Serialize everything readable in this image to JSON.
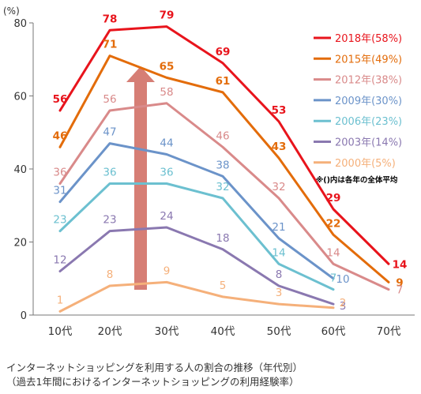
{
  "chart_data": {
    "type": "line",
    "ylabel": "(%)",
    "ylim": [
      0,
      80
    ],
    "yticks": [
      "0",
      "20",
      "40",
      "60",
      "80"
    ],
    "categories": [
      "10代",
      "20代",
      "30代",
      "40代",
      "50代",
      "60代",
      "70代"
    ],
    "legend_position": "right",
    "note": "※()内は各年の全体平均",
    "series": [
      {
        "name": "2018年(58%)",
        "color": "#e8141c",
        "values": [
          56,
          78,
          79,
          69,
          53,
          29,
          14
        ]
      },
      {
        "name": "2015年(49%)",
        "color": "#e36c0a",
        "values": [
          46,
          71,
          65,
          61,
          43,
          22,
          9
        ]
      },
      {
        "name": "2012年(38%)",
        "color": "#d98a8a",
        "values": [
          36,
          56,
          58,
          46,
          32,
          14,
          7
        ]
      },
      {
        "name": "2009年(30%)",
        "color": "#6b93c9",
        "values": [
          31,
          47,
          44,
          38,
          21,
          10,
          null
        ]
      },
      {
        "name": "2006年(23%)",
        "color": "#6cc0d0",
        "values": [
          23,
          36,
          36,
          32,
          14,
          7,
          null
        ]
      },
      {
        "name": "2003年(14%)",
        "color": "#8a78b0",
        "values": [
          12,
          23,
          24,
          18,
          8,
          3,
          null
        ]
      },
      {
        "name": "2000年(5%)",
        "color": "#f5b07a",
        "values": [
          1,
          8,
          9,
          5,
          3,
          2,
          null
        ]
      }
    ]
  },
  "caption": {
    "line1": "インターネットショッピングを利用する人の割合の推移（年代別）",
    "line2": "（過去1年間におけるインターネットショッピングの利用経験率）"
  }
}
